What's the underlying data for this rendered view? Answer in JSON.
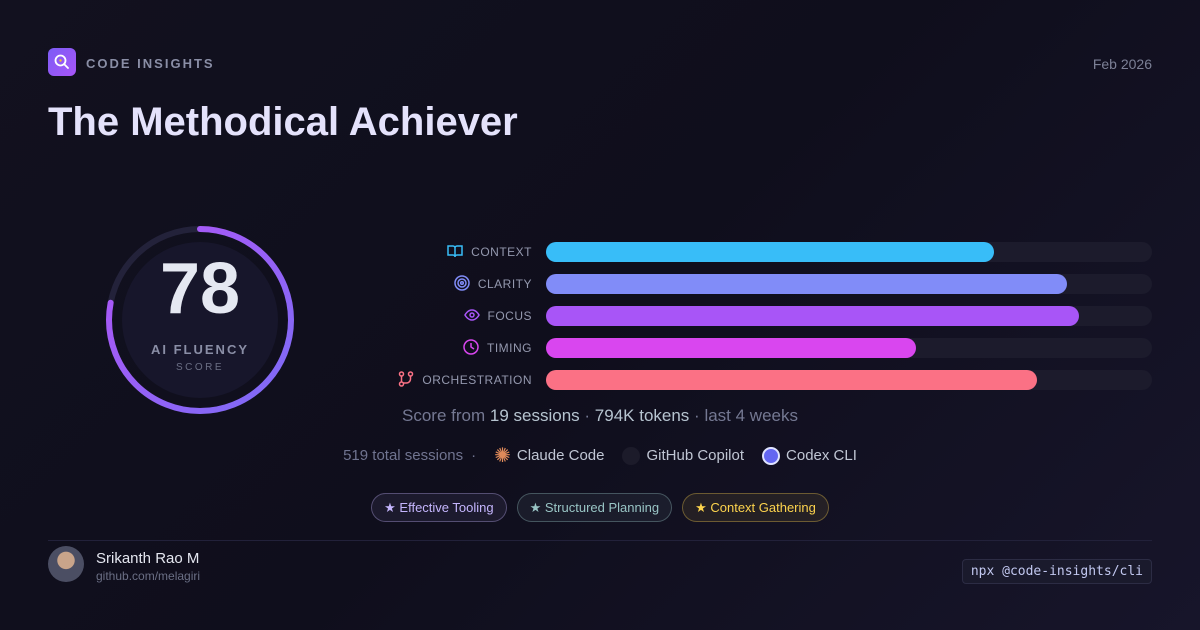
{
  "header": {
    "brand": "CODE INSIGHTS",
    "date": "Feb 2026",
    "logo_icon": "search-icon"
  },
  "title": "The Methodical Achiever",
  "score": {
    "value": 78,
    "max": 100,
    "label": "AI FLUENCY",
    "sublabel": "SCORE",
    "ring_colors": [
      "#7c6cf6",
      "#b155f7"
    ]
  },
  "metrics": [
    {
      "label": "CONTEXT",
      "icon": "book-icon",
      "value": 74,
      "color": "#38bdf8"
    },
    {
      "label": "CLARITY",
      "icon": "target-icon",
      "value": 86,
      "color": "#818cf8"
    },
    {
      "label": "FOCUS",
      "icon": "eye-icon",
      "value": 88,
      "color": "#a855f7"
    },
    {
      "label": "TIMING",
      "icon": "clock-icon",
      "value": 61,
      "color": "#d946ef"
    },
    {
      "label": "ORCHESTRATION",
      "icon": "git-merge-icon",
      "value": 81,
      "color": "#fb7185"
    }
  ],
  "meta": {
    "prefix": "Score from",
    "sessions": "19 sessions",
    "tokens": "794K tokens",
    "period": "last 4 weeks",
    "sep": "·"
  },
  "tools": {
    "total": "519 total sessions",
    "items": [
      "Claude Code",
      "GitHub Copilot",
      "Codex CLI"
    ]
  },
  "badges": [
    {
      "label": "Effective Tooling",
      "color": "#c4b5fd"
    },
    {
      "label": "Structured Planning",
      "color": "#99c5c5"
    },
    {
      "label": "Context Gathering",
      "color": "#fcd34d"
    }
  ],
  "user": {
    "name": "Srikanth Rao M",
    "link": "github.com/melagiri"
  },
  "cli": "npx @code-insights/cli"
}
